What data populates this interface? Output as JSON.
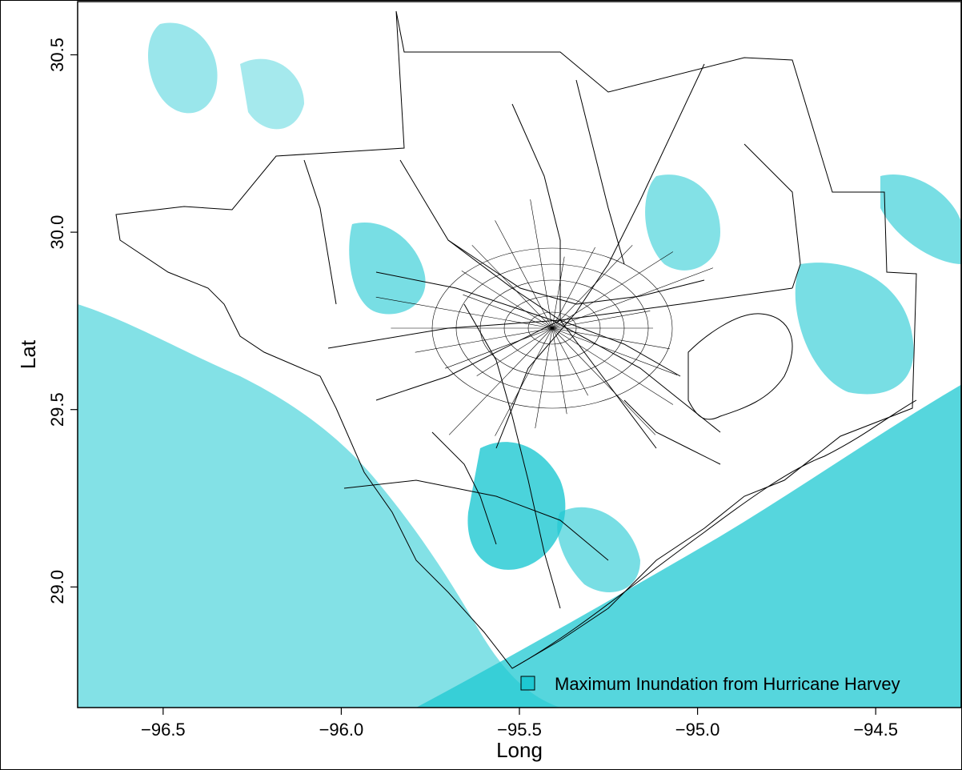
{
  "chart_data": {
    "type": "map",
    "xlabel": "Long",
    "ylabel": "Lat",
    "xlim": [
      -96.74,
      -94.26
    ],
    "ylim": [
      28.66,
      30.65
    ],
    "x_ticks": [
      -96.5,
      -96.0,
      -95.5,
      -95.0,
      -94.5
    ],
    "x_tick_labels": [
      "−96.5",
      "−96.0",
      "−95.5",
      "−95.0",
      "−94.5"
    ],
    "y_ticks": [
      29.0,
      29.5,
      30.0,
      30.5
    ],
    "y_tick_labels": [
      "29.0",
      "29.5",
      "30.0",
      "30.5"
    ],
    "legend": {
      "label": "Maximum Inundation from Hurricane Harvey",
      "position": "bottom-right"
    },
    "colors": {
      "inundation": "#1ec8d2",
      "boundaries": "#000000",
      "background": "#ffffff"
    }
  }
}
